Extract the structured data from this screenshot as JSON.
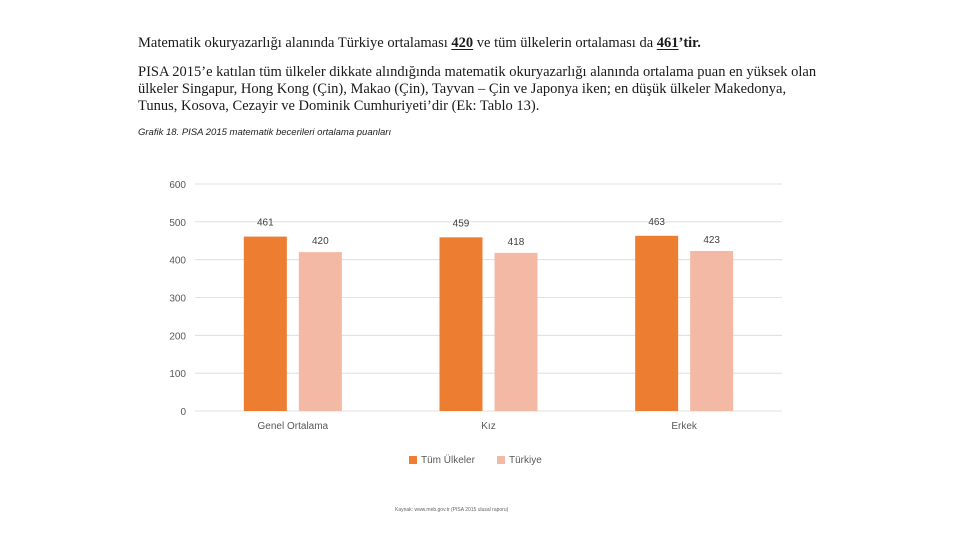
{
  "slide": {
    "line1": {
      "pre": "Matematik okuryazarlığı alanında Türkiye ortalaması ",
      "v1": "420",
      "mid": " ve tüm ülkelerin ortalaması da ",
      "v2": "461",
      "post": "’tir."
    },
    "paragraph": "PISA 2015’e katılan tüm ülkeler dikkate alındığında matematik okuryazarlığı alanında ortalama puan en yüksek olan ülkeler Singapur, Hong Kong (Çin), Makao (Çin), Tayvan – Çin ve Japonya iken; en düşük ülkeler Makedonya, Tunus, Kosova, Cezayir ve Dominik Cumhuriyeti’dir (Ek: Tablo 13).",
    "caption": "Grafik 18. PISA 2015 matematik becerileri ortalama puanları",
    "footer": "Kaynak: www.meb.gov.tr (PISA 2015 ulusal raporu)"
  },
  "chart_data": {
    "type": "bar",
    "categories": [
      "Genel Ortalama",
      "Kız",
      "Erkek"
    ],
    "series": [
      {
        "name": "Tüm Ülkeler",
        "values": [
          461,
          459,
          463
        ],
        "color": "#ED7D31"
      },
      {
        "name": "Türkiye",
        "values": [
          420,
          418,
          423
        ],
        "color": "#F4B9A4"
      }
    ],
    "yticks": [
      0,
      100,
      200,
      300,
      400,
      500,
      600
    ],
    "ylim": [
      0,
      600
    ],
    "grid": true,
    "legend": "bottom",
    "title": "",
    "xlabel": "",
    "ylabel": ""
  }
}
